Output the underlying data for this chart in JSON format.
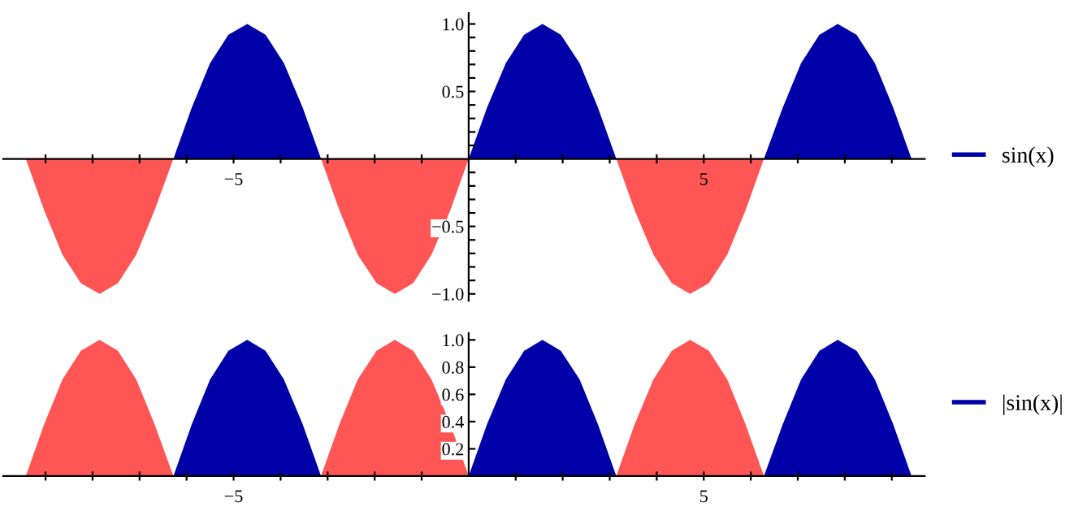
{
  "chart_data": [
    {
      "type": "area",
      "x": [
        -9.42,
        -9.03,
        -8.64,
        -8.25,
        -7.85,
        -7.46,
        -7.07,
        -6.68,
        -6.28,
        -5.89,
        -5.5,
        -5.11,
        -4.71,
        -4.32,
        -3.93,
        -3.53,
        -3.14,
        -2.75,
        -2.36,
        -1.96,
        -1.57,
        -1.18,
        -0.79,
        -0.39,
        0,
        0.39,
        0.79,
        1.18,
        1.57,
        1.96,
        2.36,
        2.75,
        3.14,
        3.53,
        3.93,
        4.32,
        4.71,
        5.11,
        5.5,
        5.89,
        6.28,
        6.68,
        7.07,
        7.46,
        7.85,
        8.25,
        8.64,
        9.03,
        9.42
      ],
      "series": [
        {
          "name": "sin(x)",
          "color": "#0000a8",
          "values": [
            null,
            null,
            null,
            null,
            null,
            null,
            null,
            null,
            0,
            0.38,
            0.71,
            0.92,
            1,
            0.92,
            0.71,
            0.38,
            0,
            null,
            null,
            null,
            null,
            null,
            null,
            null,
            0,
            0.38,
            0.71,
            0.92,
            1,
            0.92,
            0.71,
            0.38,
            0,
            null,
            null,
            null,
            null,
            null,
            null,
            null,
            0,
            0.38,
            0.71,
            0.92,
            1,
            0.92,
            0.71,
            0.38,
            0
          ]
        },
        {
          "color": "#ff5555",
          "values": [
            0,
            -0.38,
            -0.71,
            -0.92,
            -1,
            -0.92,
            -0.71,
            -0.38,
            0,
            null,
            null,
            null,
            null,
            null,
            null,
            null,
            0,
            -0.38,
            -0.71,
            -0.92,
            -1,
            -0.92,
            -0.71,
            -0.38,
            0,
            null,
            null,
            null,
            null,
            null,
            null,
            null,
            0,
            -0.38,
            -0.71,
            -0.92,
            -1,
            -0.92,
            -0.71,
            -0.38,
            0,
            null,
            null,
            null,
            null,
            null,
            null,
            null,
            null
          ]
        }
      ],
      "xlim": [
        -9.9,
        9.7
      ],
      "ylim": [
        -1.05,
        1.08
      ],
      "xticks": [
        {
          "value": -9,
          "label": null
        },
        {
          "value": -8,
          "label": null
        },
        {
          "value": -7,
          "label": null
        },
        {
          "value": -6,
          "label": null
        },
        {
          "value": -5,
          "label": "−5"
        },
        {
          "value": -4,
          "label": null
        },
        {
          "value": -3,
          "label": null
        },
        {
          "value": -2,
          "label": null
        },
        {
          "value": -1,
          "label": null
        },
        {
          "value": 1,
          "label": null
        },
        {
          "value": 2,
          "label": null
        },
        {
          "value": 3,
          "label": null
        },
        {
          "value": 4,
          "label": null
        },
        {
          "value": 5,
          "label": "5"
        },
        {
          "value": 6,
          "label": null
        },
        {
          "value": 7,
          "label": null
        },
        {
          "value": 8,
          "label": null
        },
        {
          "value": 9,
          "label": null
        }
      ],
      "yticks": [
        {
          "value": -1.0,
          "label": "−1.0"
        },
        {
          "value": -0.9,
          "label": null
        },
        {
          "value": -0.8,
          "label": null
        },
        {
          "value": -0.7,
          "label": null
        },
        {
          "value": -0.6,
          "label": null
        },
        {
          "value": -0.5,
          "label": "−0.5"
        },
        {
          "value": -0.4,
          "label": null
        },
        {
          "value": -0.3,
          "label": null
        },
        {
          "value": -0.2,
          "label": null
        },
        {
          "value": -0.1,
          "label": null
        },
        {
          "value": 0.1,
          "label": null
        },
        {
          "value": 0.2,
          "label": null
        },
        {
          "value": 0.3,
          "label": null
        },
        {
          "value": 0.4,
          "label": null
        },
        {
          "value": 0.5,
          "label": "0.5"
        },
        {
          "value": 0.6,
          "label": null
        },
        {
          "value": 0.7,
          "label": null
        },
        {
          "value": 0.8,
          "label": null
        },
        {
          "value": 0.9,
          "label": null
        },
        {
          "value": 1.0,
          "label": "1.0"
        }
      ],
      "legend": "right",
      "grid": false
    },
    {
      "type": "area",
      "x": [
        -9.42,
        -9.03,
        -8.64,
        -8.25,
        -7.85,
        -7.46,
        -7.07,
        -6.68,
        -6.28,
        -5.89,
        -5.5,
        -5.11,
        -4.71,
        -4.32,
        -3.93,
        -3.53,
        -3.14,
        -2.75,
        -2.36,
        -1.96,
        -1.57,
        -1.18,
        -0.79,
        -0.39,
        0,
        0.39,
        0.79,
        1.18,
        1.57,
        1.96,
        2.36,
        2.75,
        3.14,
        3.53,
        3.93,
        4.32,
        4.71,
        5.11,
        5.5,
        5.89,
        6.28,
        6.68,
        7.07,
        7.46,
        7.85,
        8.25,
        8.64,
        9.03,
        9.42
      ],
      "series": [
        {
          "name": "|sin(x)|",
          "color": "#0000a8",
          "values": [
            null,
            null,
            null,
            null,
            null,
            null,
            null,
            null,
            0,
            0.38,
            0.71,
            0.92,
            1,
            0.92,
            0.71,
            0.38,
            0,
            null,
            null,
            null,
            null,
            null,
            null,
            null,
            0,
            0.38,
            0.71,
            0.92,
            1,
            0.92,
            0.71,
            0.38,
            0,
            null,
            null,
            null,
            null,
            null,
            null,
            null,
            0,
            0.38,
            0.71,
            0.92,
            1,
            0.92,
            0.71,
            0.38,
            0
          ]
        },
        {
          "color": "#ff5555",
          "values": [
            0,
            0.38,
            0.71,
            0.92,
            1,
            0.92,
            0.71,
            0.38,
            0,
            null,
            null,
            null,
            null,
            null,
            null,
            null,
            0,
            0.38,
            0.71,
            0.92,
            1,
            0.92,
            0.71,
            0.38,
            0,
            null,
            null,
            null,
            null,
            null,
            null,
            null,
            0,
            0.38,
            0.71,
            0.92,
            1,
            0.92,
            0.71,
            0.38,
            0,
            null,
            null,
            null,
            null,
            null,
            null,
            null,
            null
          ]
        }
      ],
      "xlim": [
        -9.9,
        9.7
      ],
      "ylim": [
        0,
        1.05
      ],
      "xticks": [
        {
          "value": -9,
          "label": null
        },
        {
          "value": -8,
          "label": null
        },
        {
          "value": -7,
          "label": null
        },
        {
          "value": -6,
          "label": null
        },
        {
          "value": -5,
          "label": "−5"
        },
        {
          "value": -4,
          "label": null
        },
        {
          "value": -3,
          "label": null
        },
        {
          "value": -2,
          "label": null
        },
        {
          "value": -1,
          "label": null
        },
        {
          "value": 1,
          "label": null
        },
        {
          "value": 2,
          "label": null
        },
        {
          "value": 3,
          "label": null
        },
        {
          "value": 4,
          "label": null
        },
        {
          "value": 5,
          "label": "5"
        },
        {
          "value": 6,
          "label": null
        },
        {
          "value": 7,
          "label": null
        },
        {
          "value": 8,
          "label": null
        },
        {
          "value": 9,
          "label": null
        }
      ],
      "yticks": [
        {
          "value": 0.2,
          "label": "0.2"
        },
        {
          "value": 0.4,
          "label": "0.4"
        },
        {
          "value": 0.6,
          "label": "0.6"
        },
        {
          "value": 0.8,
          "label": "0.8"
        },
        {
          "value": 1.0,
          "label": "1.0"
        }
      ],
      "legend": "right",
      "grid": false
    }
  ]
}
